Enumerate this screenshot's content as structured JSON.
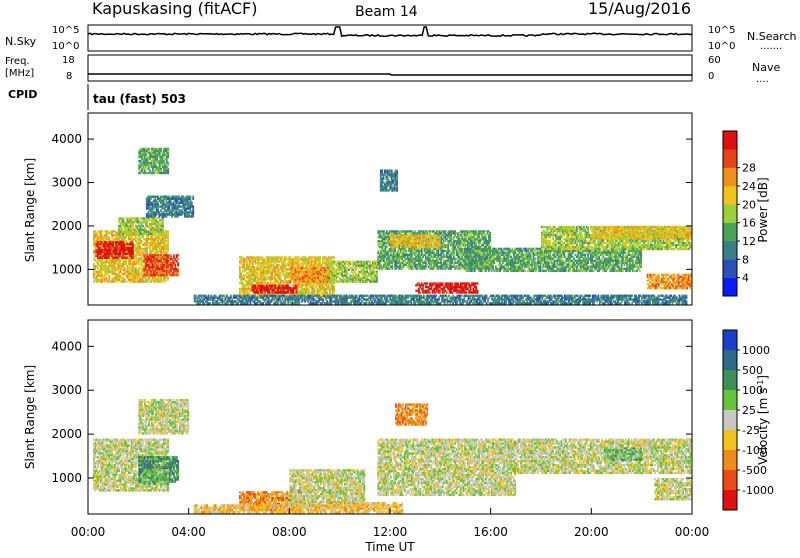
{
  "header": {
    "station": "Kapuskasing (fitACF)",
    "beam": "Beam 14",
    "date": "15/Aug/2016"
  },
  "top_panels": {
    "nsky_label": "N.Sky",
    "nsky_ticks": [
      "10^5",
      "10^0"
    ],
    "nsearch_label": "N.Search",
    "nsearch_ticks": [
      "10^5",
      "10^0"
    ],
    "freq_label": "Freq.",
    "freq_unit": "[MHz]",
    "freq_ticks": [
      "18",
      "8"
    ],
    "nave_label": "Nave",
    "nave_ticks": [
      "60",
      "0"
    ],
    "cpid_label": "CPID",
    "cpid_text": "tau (fast) 503"
  },
  "chart_data": [
    {
      "type": "heatmap",
      "name": "power",
      "ylabel": "Slant Range [km]",
      "yticks": [
        1000,
        2000,
        3000,
        4000
      ],
      "ylim": [
        180,
        4600
      ],
      "xlim_hours": [
        0,
        24
      ],
      "colorbar_label": "Power [dB]",
      "colorbar_ticks": [
        "4",
        "8",
        "12",
        "16",
        "20",
        "24",
        "28"
      ],
      "colorbar_colors": [
        "#0a1cf5",
        "#2c4fb8",
        "#3a7f8a",
        "#4aa35a",
        "#9ccf3c",
        "#f0c41a",
        "#f0901a",
        "#e8421a",
        "#e01010"
      ],
      "regions": [
        {
          "t0": 0.2,
          "t1": 3.2,
          "r0": 700,
          "r1": 1900,
          "level": 5
        },
        {
          "t0": 0.3,
          "t1": 1.8,
          "r0": 1250,
          "r1": 1650,
          "level": 8
        },
        {
          "t0": 2.2,
          "t1": 3.6,
          "r0": 850,
          "r1": 1350,
          "level": 7
        },
        {
          "t0": 1.2,
          "t1": 3.0,
          "r0": 1800,
          "r1": 2200,
          "level": 4
        },
        {
          "t0": 2.3,
          "t1": 4.2,
          "r0": 2200,
          "r1": 2700,
          "level": 2
        },
        {
          "t0": 2.0,
          "t1": 3.2,
          "r0": 3200,
          "r1": 3800,
          "level": 3
        },
        {
          "t0": 6.0,
          "t1": 9.8,
          "r0": 350,
          "r1": 1300,
          "level": 5
        },
        {
          "t0": 6.5,
          "t1": 8.3,
          "r0": 450,
          "r1": 650,
          "level": 8
        },
        {
          "t0": 8.0,
          "t1": 9.6,
          "r0": 700,
          "r1": 1050,
          "level": 6
        },
        {
          "t0": 9.5,
          "t1": 11.5,
          "r0": 700,
          "r1": 1200,
          "level": 4
        },
        {
          "t0": 11.5,
          "t1": 16.0,
          "r0": 1000,
          "r1": 1900,
          "level": 3
        },
        {
          "t0": 13.0,
          "t1": 15.5,
          "r0": 450,
          "r1": 700,
          "level": 8
        },
        {
          "t0": 12.0,
          "t1": 14.0,
          "r0": 1500,
          "r1": 1800,
          "level": 5
        },
        {
          "t0": 15.0,
          "t1": 22.0,
          "r0": 950,
          "r1": 1500,
          "level": 3
        },
        {
          "t0": 18.0,
          "t1": 24.0,
          "r0": 1450,
          "r1": 2000,
          "level": 4
        },
        {
          "t0": 20.0,
          "t1": 24.0,
          "r0": 1700,
          "r1": 2000,
          "level": 5
        },
        {
          "t0": 22.2,
          "t1": 24.0,
          "r0": 550,
          "r1": 900,
          "level": 6
        },
        {
          "t0": 11.6,
          "t1": 12.3,
          "r0": 2800,
          "r1": 3300,
          "level": 2
        },
        {
          "t0": 4.2,
          "t1": 23.8,
          "r0": 200,
          "r1": 420,
          "level": 2
        }
      ]
    },
    {
      "type": "heatmap",
      "name": "velocity",
      "ylabel": "Slant Range [km]",
      "yticks": [
        1000,
        2000,
        3000,
        4000
      ],
      "ylim": [
        180,
        4600
      ],
      "xlabel": "Time UT",
      "xticks": [
        "00:00",
        "04:00",
        "08:00",
        "12:00",
        "16:00",
        "20:00",
        "00:00"
      ],
      "xlim_hours": [
        0,
        24
      ],
      "colorbar_label": "Velocity [m s",
      "colorbar_label_sup": "-1",
      "colorbar_label_end": "]",
      "colorbar_ticks": [
        "1000",
        "500",
        "100",
        "25",
        "-25",
        "-100",
        "-500",
        "-1000"
      ],
      "colorbar_colors": [
        "#1a3fc8",
        "#2f6a8a",
        "#3e8f5a",
        "#66c43c",
        "#c8c8c0",
        "#f4c020",
        "#f08a1a",
        "#ea4a16",
        "#e01010"
      ],
      "regions": [
        {
          "t0": 0.2,
          "t1": 3.2,
          "r0": 700,
          "r1": 1900,
          "level": 4
        },
        {
          "t0": 2.0,
          "t1": 3.6,
          "r0": 900,
          "r1": 1500,
          "level": 2
        },
        {
          "t0": 2.2,
          "t1": 3.2,
          "r0": 850,
          "r1": 1200,
          "level": 3
        },
        {
          "t0": 2.0,
          "t1": 4.0,
          "r0": 2000,
          "r1": 2800,
          "level": 4
        },
        {
          "t0": 6.0,
          "t1": 8.5,
          "r0": 250,
          "r1": 700,
          "level": 6
        },
        {
          "t0": 8.0,
          "t1": 11.0,
          "r0": 300,
          "r1": 1200,
          "level": 4
        },
        {
          "t0": 11.5,
          "t1": 17.0,
          "r0": 600,
          "r1": 1900,
          "level": 4
        },
        {
          "t0": 17.0,
          "t1": 24.0,
          "r0": 1100,
          "r1": 1900,
          "level": 4
        },
        {
          "t0": 20.5,
          "t1": 22.0,
          "r0": 1400,
          "r1": 1700,
          "level": 3
        },
        {
          "t0": 22.5,
          "t1": 24.0,
          "r0": 500,
          "r1": 1000,
          "level": 4
        },
        {
          "t0": 12.2,
          "t1": 13.5,
          "r0": 2200,
          "r1": 2700,
          "level": 6
        },
        {
          "t0": 9.5,
          "t1": 12.5,
          "r0": 200,
          "r1": 450,
          "level": 5
        },
        {
          "t0": 4.2,
          "t1": 9.5,
          "r0": 200,
          "r1": 400,
          "level": 5
        }
      ]
    }
  ]
}
